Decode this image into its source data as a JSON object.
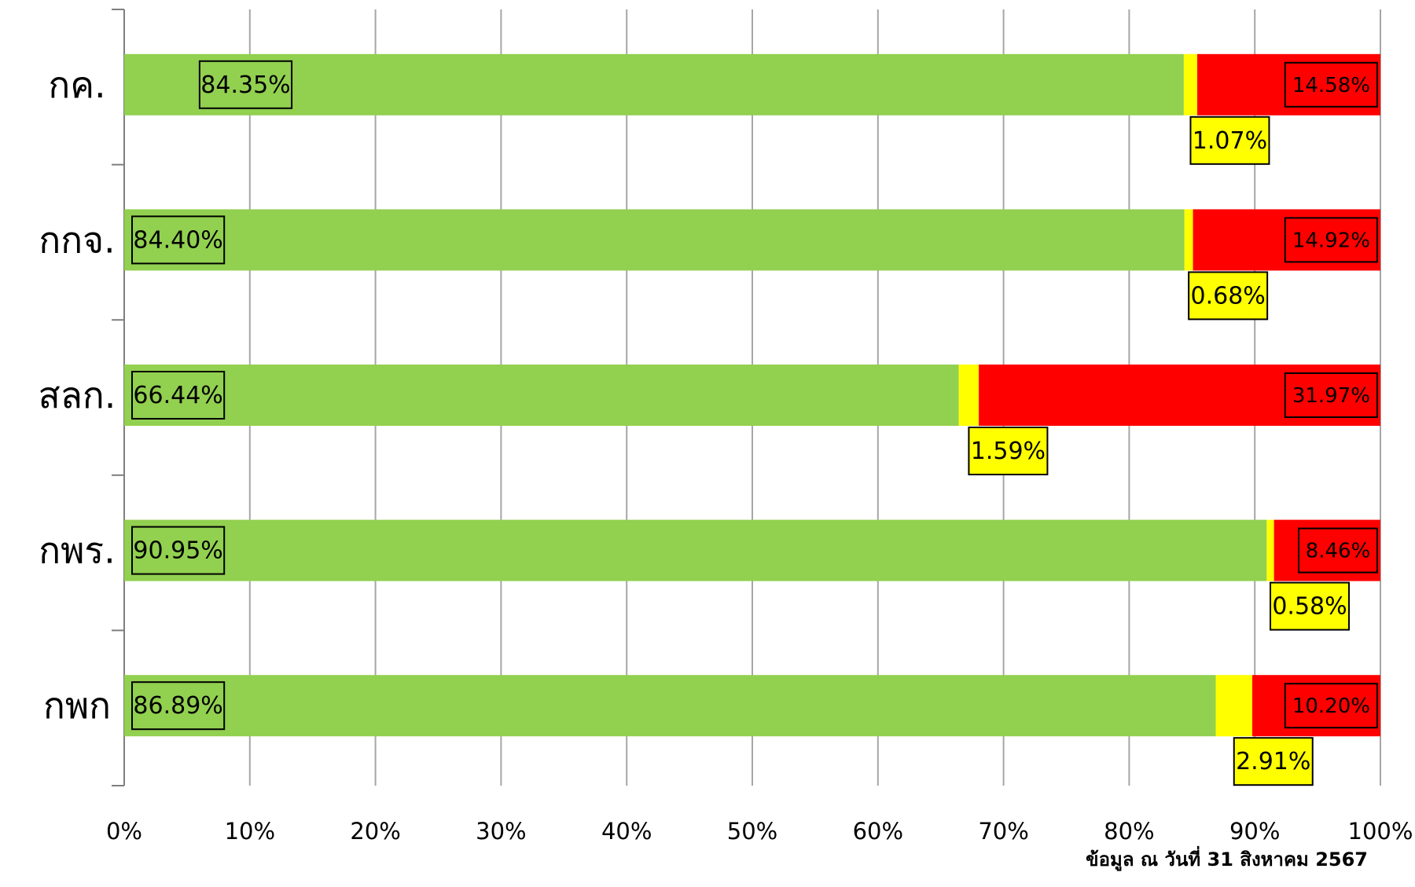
{
  "colors": {
    "green": "#92D050",
    "yellow": "#FFFF00",
    "red": "#FF0000",
    "grid": "#A6A6A6",
    "axis": "#7F7F7F",
    "text": "#000000"
  },
  "chart_data": {
    "type": "bar",
    "orientation": "horizontal",
    "stacked": "percent",
    "categories": [
      "กค.",
      "กกจ.",
      "สลก.",
      "กพร.",
      "กพก"
    ],
    "series": [
      {
        "values": [
          84.35,
          84.4,
          66.44,
          90.95,
          86.89
        ],
        "labels": [
          "84.35%",
          "84.40%",
          "66.44%",
          "90.95%",
          "86.89%"
        ],
        "color": "green"
      },
      {
        "values": [
          1.07,
          0.68,
          1.59,
          0.58,
          2.91
        ],
        "labels": [
          "1.07%",
          "0.68%",
          "1.59%",
          "0.58%",
          "2.91%"
        ],
        "color": "yellow"
      },
      {
        "values": [
          14.58,
          14.92,
          31.97,
          8.46,
          10.2
        ],
        "labels": [
          "14.58%",
          "14.92%",
          "31.97%",
          "8.46%",
          "10.20%"
        ],
        "color": "red"
      }
    ],
    "xlim": [
      0,
      100
    ],
    "xticks": [
      "0%",
      "10%",
      "20%",
      "30%",
      "40%",
      "50%",
      "60%",
      "70%",
      "80%",
      "90%",
      "100%"
    ],
    "grid": true,
    "legend": "none"
  },
  "footer_note": "ข้อมูล ณ วันที่ 31 สิงหาคม 2567"
}
